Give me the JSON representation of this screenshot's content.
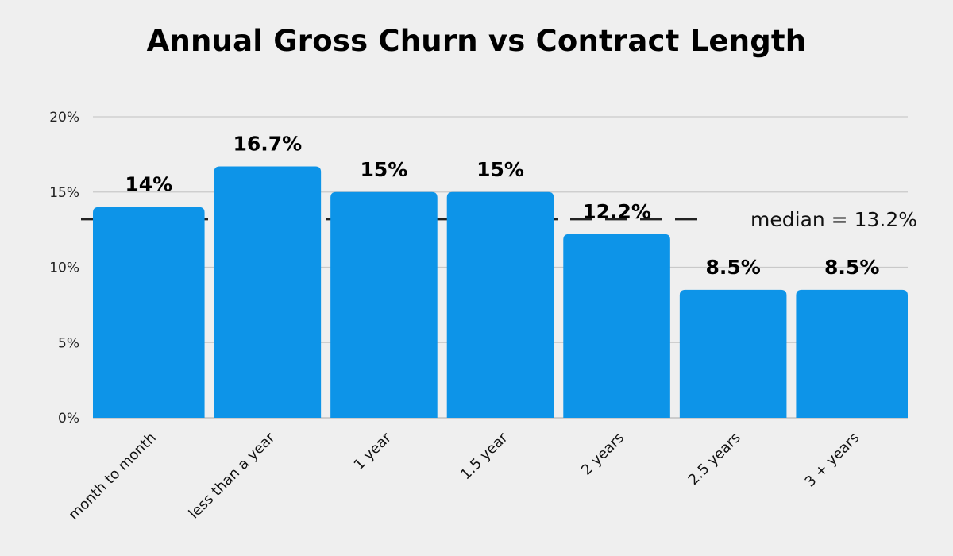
{
  "chart_data": {
    "type": "bar",
    "title": "Annual Gross Churn vs Contract Length",
    "xlabel": "",
    "ylabel": "",
    "categories": [
      "month to month",
      "less than a year",
      "1 year",
      "1.5 year",
      "2 years",
      "2.5 years",
      "3 + years"
    ],
    "values": [
      14,
      16.7,
      15,
      15,
      12.2,
      8.5,
      8.5
    ],
    "data_labels": [
      "14%",
      "16.7%",
      "15%",
      "15%",
      "12.2%",
      "8.5%",
      "8.5%"
    ],
    "ylim": [
      0,
      20
    ],
    "yticks": [
      0,
      5,
      10,
      15,
      20
    ],
    "ytick_labels": [
      "0%",
      "5%",
      "10%",
      "15%",
      "20%"
    ],
    "grid": true,
    "bar_color": "#0d94e8",
    "reference_line": {
      "value": 13.2,
      "label": "median = 13.2%",
      "style": "dashed",
      "color": "#222222"
    }
  }
}
